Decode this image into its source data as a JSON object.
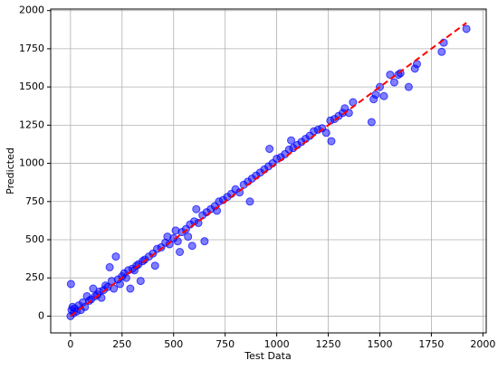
{
  "chart_data": {
    "type": "scatter",
    "xlabel": "Test Data",
    "ylabel": "Predicted",
    "xlim": [
      -96,
      2016
    ],
    "ylim": [
      -110,
      2010
    ],
    "xticks": [
      0,
      250,
      500,
      750,
      1000,
      1250,
      1500,
      1750,
      2000
    ],
    "yticks": [
      0,
      250,
      500,
      750,
      1000,
      1250,
      1500,
      1750,
      2000
    ],
    "grid": true,
    "series": [
      {
        "color": "#0000ff",
        "x": [
          0,
          5,
          10,
          2,
          15,
          20,
          30,
          40,
          50,
          60,
          70,
          80,
          90,
          100,
          110,
          120,
          130,
          140,
          150,
          160,
          170,
          180,
          190,
          200,
          210,
          220,
          230,
          240,
          250,
          260,
          270,
          280,
          290,
          300,
          310,
          320,
          330,
          340,
          350,
          360,
          380,
          400,
          410,
          420,
          440,
          460,
          470,
          480,
          500,
          510,
          520,
          530,
          540,
          560,
          570,
          580,
          590,
          600,
          610,
          620,
          640,
          650,
          660,
          680,
          700,
          710,
          720,
          740,
          760,
          780,
          800,
          820,
          840,
          860,
          870,
          880,
          900,
          920,
          940,
          960,
          965,
          980,
          1000,
          1020,
          1040,
          1060,
          1070,
          1080,
          1100,
          1120,
          1140,
          1160,
          1180,
          1200,
          1220,
          1240,
          1260,
          1265,
          1280,
          1300,
          1320,
          1330,
          1350,
          1370,
          1460,
          1470,
          1480,
          1500,
          1520,
          1550,
          1570,
          1590,
          1600,
          1640,
          1670,
          1680,
          1800,
          1810,
          1920
        ],
        "values": [
          0,
          40,
          60,
          210,
          20,
          50,
          30,
          70,
          40,
          90,
          60,
          130,
          100,
          110,
          180,
          130,
          140,
          160,
          120,
          170,
          200,
          190,
          320,
          230,
          180,
          390,
          240,
          210,
          260,
          280,
          250,
          300,
          180,
          310,
          300,
          330,
          340,
          230,
          360,
          370,
          390,
          410,
          330,
          440,
          450,
          480,
          520,
          470,
          510,
          560,
          490,
          420,
          550,
          570,
          520,
          600,
          460,
          620,
          700,
          610,
          660,
          490,
          680,
          700,
          720,
          690,
          750,
          760,
          780,
          800,
          830,
          810,
          860,
          880,
          750,
          900,
          920,
          940,
          960,
          980,
          1095,
          1000,
          1030,
          1040,
          1060,
          1090,
          1150,
          1100,
          1120,
          1140,
          1160,
          1180,
          1210,
          1220,
          1230,
          1200,
          1280,
          1145,
          1290,
          1310,
          1330,
          1360,
          1330,
          1400,
          1270,
          1420,
          1450,
          1500,
          1440,
          1580,
          1530,
          1580,
          1590,
          1500,
          1620,
          1650,
          1730,
          1790,
          1880
        ]
      }
    ],
    "reference_line": {
      "color": "#ff0000",
      "x": [
        0,
        1920
      ],
      "y": [
        0,
        1920
      ]
    }
  }
}
